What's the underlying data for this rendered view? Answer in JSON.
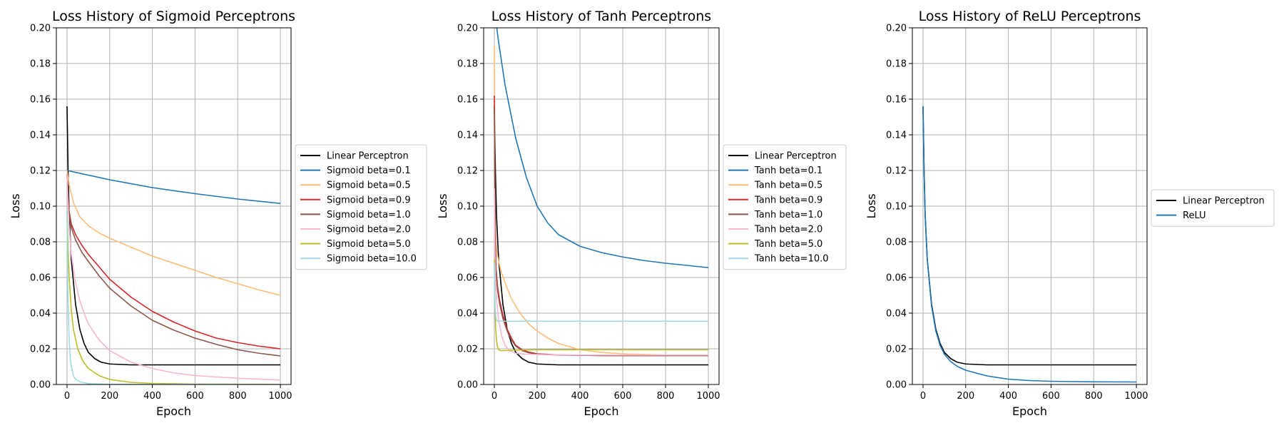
{
  "chart_data": [
    {
      "type": "line",
      "title": "Loss History of Sigmoid Perceptrons",
      "xlabel": "Epoch",
      "ylabel": "Loss",
      "xlim": [
        -50,
        1050
      ],
      "ylim": [
        0,
        0.2
      ],
      "xticks": [
        "0",
        "200",
        "400",
        "600",
        "800",
        "1000"
      ],
      "yticks": [
        "0.00",
        "0.02",
        "0.04",
        "0.06",
        "0.08",
        "0.10",
        "0.12",
        "0.14",
        "0.16",
        "0.18",
        "0.20"
      ],
      "grid": true,
      "legend_position": "right",
      "series": [
        {
          "name": "Linear Perceptron",
          "color": "#000000",
          "x": [
            0,
            5,
            10,
            20,
            40,
            60,
            80,
            100,
            130,
            160,
            200,
            300,
            500,
            1000
          ],
          "y": [
            0.156,
            0.12,
            0.095,
            0.07,
            0.045,
            0.031,
            0.023,
            0.018,
            0.0145,
            0.0125,
            0.0115,
            0.011,
            0.011,
            0.011
          ]
        },
        {
          "name": "Sigmoid beta=0.1",
          "color": "#1f77b4",
          "x": [
            0,
            200,
            400,
            600,
            800,
            1000
          ],
          "y": [
            0.12,
            0.1148,
            0.1104,
            0.107,
            0.104,
            0.1015
          ]
        },
        {
          "name": "Sigmoid beta=0.5",
          "color": "#ffbb78",
          "x": [
            0,
            10,
            30,
            60,
            100,
            150,
            200,
            300,
            400,
            500,
            600,
            700,
            800,
            900,
            1000
          ],
          "y": [
            0.12,
            0.112,
            0.102,
            0.094,
            0.089,
            0.085,
            0.082,
            0.077,
            0.072,
            0.068,
            0.064,
            0.06,
            0.0565,
            0.053,
            0.05
          ]
        },
        {
          "name": "Sigmoid beta=0.9",
          "color": "#d62728",
          "x": [
            0,
            5,
            10,
            20,
            40,
            70,
            100,
            150,
            200,
            300,
            400,
            500,
            600,
            700,
            800,
            900,
            1000
          ],
          "y": [
            0.118,
            0.105,
            0.097,
            0.09,
            0.084,
            0.078,
            0.073,
            0.066,
            0.059,
            0.049,
            0.041,
            0.035,
            0.03,
            0.026,
            0.0235,
            0.0215,
            0.02
          ]
        },
        {
          "name": "Sigmoid beta=1.0",
          "color": "#8c564b",
          "x": [
            0,
            5,
            10,
            20,
            40,
            70,
            100,
            150,
            200,
            300,
            400,
            500,
            600,
            700,
            800,
            900,
            1000
          ],
          "y": [
            0.118,
            0.104,
            0.096,
            0.088,
            0.081,
            0.074,
            0.069,
            0.061,
            0.054,
            0.044,
            0.036,
            0.0305,
            0.026,
            0.0225,
            0.0195,
            0.0175,
            0.016
          ]
        },
        {
          "name": "Sigmoid beta=2.0",
          "color": "#f7b6d2",
          "x": [
            0,
            5,
            10,
            20,
            40,
            60,
            80,
            100,
            150,
            200,
            300,
            400,
            500,
            600,
            800,
            1000
          ],
          "y": [
            0.118,
            0.1,
            0.088,
            0.073,
            0.057,
            0.047,
            0.04,
            0.034,
            0.025,
            0.019,
            0.0125,
            0.009,
            0.0065,
            0.005,
            0.0035,
            0.0025
          ]
        },
        {
          "name": "Sigmoid beta=5.0",
          "color": "#bcbd22",
          "x": [
            0,
            5,
            10,
            20,
            30,
            50,
            75,
            100,
            150,
            200,
            300,
            400,
            600,
            1000
          ],
          "y": [
            0.098,
            0.075,
            0.06,
            0.042,
            0.031,
            0.02,
            0.013,
            0.009,
            0.005,
            0.0028,
            0.0012,
            0.0006,
            0.0002,
            0.0001
          ]
        },
        {
          "name": "Sigmoid beta=10.0",
          "color": "#9edae5",
          "x": [
            0,
            3,
            6,
            10,
            15,
            20,
            30,
            40,
            60,
            100,
            200,
            1000
          ],
          "y": [
            0.098,
            0.06,
            0.04,
            0.025,
            0.015,
            0.01,
            0.005,
            0.003,
            0.0015,
            0.0005,
            0.0001,
            0.0
          ]
        }
      ]
    },
    {
      "type": "line",
      "title": "Loss History of Tanh Perceptrons",
      "xlabel": "Epoch",
      "ylabel": "Loss",
      "xlim": [
        -50,
        1050
      ],
      "ylim": [
        0,
        0.2
      ],
      "xticks": [
        "0",
        "200",
        "400",
        "600",
        "800",
        "1000"
      ],
      "yticks": [
        "0.00",
        "0.02",
        "0.04",
        "0.06",
        "0.08",
        "0.10",
        "0.12",
        "0.14",
        "0.16",
        "0.18",
        "0.20"
      ],
      "grid": true,
      "legend_position": "right",
      "series": [
        {
          "name": "Linear Perceptron",
          "color": "#000000",
          "x": [
            0,
            5,
            10,
            20,
            40,
            60,
            80,
            100,
            130,
            160,
            200,
            300,
            500,
            1000
          ],
          "y": [
            0.156,
            0.12,
            0.095,
            0.07,
            0.045,
            0.031,
            0.023,
            0.018,
            0.0145,
            0.0125,
            0.0115,
            0.011,
            0.011,
            0.011
          ]
        },
        {
          "name": "Tanh beta=0.1",
          "color": "#1f77b4",
          "x": [
            0,
            20,
            50,
            100,
            150,
            200,
            250,
            300,
            400,
            500,
            600,
            700,
            800,
            900,
            1000
          ],
          "y": [
            0.21,
            0.192,
            0.168,
            0.138,
            0.116,
            0.1,
            0.0905,
            0.084,
            0.0775,
            0.074,
            0.0715,
            0.0695,
            0.068,
            0.0668,
            0.0655
          ]
        },
        {
          "name": "Tanh beta=0.5",
          "color": "#ffbb78",
          "x": [
            0,
            3,
            8,
            15,
            30,
            50,
            80,
            120,
            160,
            200,
            250,
            300,
            400,
            500,
            600,
            800,
            1000
          ],
          "y": [
            0.19,
            0.1,
            0.078,
            0.072,
            0.064,
            0.057,
            0.048,
            0.04,
            0.034,
            0.03,
            0.026,
            0.023,
            0.0195,
            0.018,
            0.0172,
            0.0165,
            0.0162
          ]
        },
        {
          "name": "Tanh beta=0.9",
          "color": "#d62728",
          "x": [
            0,
            2,
            4,
            8,
            15,
            25,
            40,
            60,
            80,
            100,
            130,
            160,
            200,
            300,
            500,
            1000
          ],
          "y": [
            0.162,
            0.12,
            0.085,
            0.065,
            0.055,
            0.047,
            0.039,
            0.031,
            0.026,
            0.022,
            0.0195,
            0.0182,
            0.0172,
            0.0166,
            0.0162,
            0.0162
          ]
        },
        {
          "name": "Tanh beta=1.0",
          "color": "#8c564b",
          "x": [
            0,
            2,
            4,
            8,
            15,
            25,
            40,
            60,
            80,
            100,
            130,
            160,
            200,
            300,
            500,
            1000
          ],
          "y": [
            0.155,
            0.115,
            0.082,
            0.063,
            0.053,
            0.045,
            0.037,
            0.03,
            0.025,
            0.0215,
            0.019,
            0.0178,
            0.017,
            0.0165,
            0.0162,
            0.0162
          ]
        },
        {
          "name": "Tanh beta=2.0",
          "color": "#f7b6d2",
          "x": [
            0,
            2,
            5,
            10,
            20,
            35,
            50,
            70,
            100,
            150,
            200,
            400,
            1000
          ],
          "y": [
            0.11,
            0.08,
            0.06,
            0.048,
            0.036,
            0.027,
            0.022,
            0.019,
            0.0175,
            0.017,
            0.0168,
            0.0165,
            0.0165
          ]
        },
        {
          "name": "Tanh beta=5.0",
          "color": "#bcbd22",
          "x": [
            0,
            3,
            6,
            10,
            15,
            20,
            30,
            50,
            100,
            200,
            1000
          ],
          "y": [
            0.07,
            0.045,
            0.032,
            0.025,
            0.021,
            0.0195,
            0.019,
            0.019,
            0.0193,
            0.0195,
            0.0195
          ]
        },
        {
          "name": "Tanh beta=10.0",
          "color": "#9edae5",
          "x": [
            0,
            2,
            4,
            7,
            10,
            15,
            25,
            40,
            1000
          ],
          "y": [
            0.068,
            0.05,
            0.042,
            0.038,
            0.036,
            0.0355,
            0.0355,
            0.0355,
            0.0355
          ]
        }
      ]
    },
    {
      "type": "line",
      "title": "Loss History of ReLU Perceptrons",
      "xlabel": "Epoch",
      "ylabel": "Loss",
      "xlim": [
        -50,
        1050
      ],
      "ylim": [
        0,
        0.2
      ],
      "xticks": [
        "0",
        "200",
        "400",
        "600",
        "800",
        "1000"
      ],
      "yticks": [
        "0.00",
        "0.02",
        "0.04",
        "0.06",
        "0.08",
        "0.10",
        "0.12",
        "0.14",
        "0.16",
        "0.18",
        "0.20"
      ],
      "grid": true,
      "legend_position": "right",
      "series": [
        {
          "name": "Linear Perceptron",
          "color": "#000000",
          "x": [
            0,
            5,
            10,
            20,
            40,
            60,
            80,
            100,
            130,
            160,
            200,
            300,
            500,
            1000
          ],
          "y": [
            0.156,
            0.12,
            0.095,
            0.07,
            0.045,
            0.031,
            0.023,
            0.018,
            0.0145,
            0.0125,
            0.0115,
            0.011,
            0.011,
            0.011
          ]
        },
        {
          "name": "ReLU",
          "color": "#1f77b4",
          "x": [
            0,
            5,
            10,
            20,
            40,
            60,
            80,
            100,
            130,
            160,
            200,
            300,
            400,
            500,
            600,
            700,
            800,
            1000
          ],
          "y": [
            0.156,
            0.12,
            0.095,
            0.07,
            0.044,
            0.03,
            0.022,
            0.017,
            0.0128,
            0.0102,
            0.008,
            0.0048,
            0.003,
            0.0022,
            0.0018,
            0.0016,
            0.0015,
            0.0014
          ]
        }
      ]
    }
  ]
}
